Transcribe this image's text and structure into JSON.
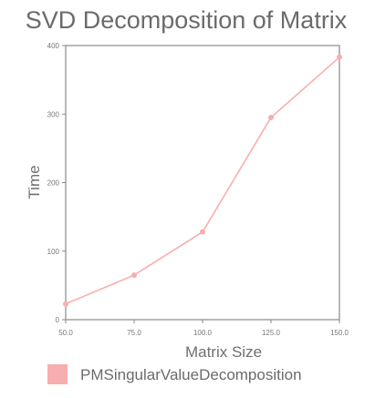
{
  "chart_data": {
    "type": "line",
    "title": "SVD Decomposition of Matrix",
    "xlabel": "Matrix Size",
    "ylabel": "Time",
    "x": [
      50.0,
      75.0,
      100.0,
      125.0,
      150.0
    ],
    "x_tick_labels": [
      "50.0",
      "75.0",
      "100.0",
      "125.0",
      "150.0"
    ],
    "xlim": [
      50,
      150
    ],
    "ylim": [
      0,
      400
    ],
    "y_ticks": [
      0,
      100,
      200,
      300,
      400
    ],
    "grid": false,
    "legend_position": "bottom-left",
    "series": [
      {
        "name": "PMSingularValueDecomposition",
        "color": "#f7aeae",
        "values": [
          23,
          65,
          128,
          295,
          383
        ]
      }
    ]
  }
}
